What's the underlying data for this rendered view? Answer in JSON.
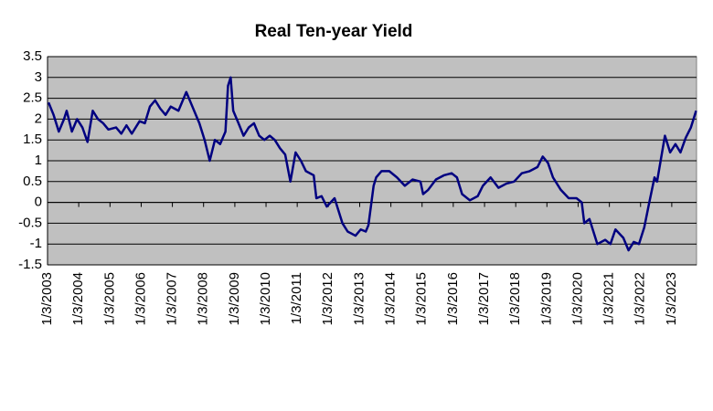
{
  "chart_data": {
    "type": "line",
    "title": "Real Ten-year Yield",
    "series": [
      {
        "name": "Real Ten-year Yield",
        "color": "#000080",
        "x": [
          "2003-01-15",
          "2003-03-15",
          "2003-05-15",
          "2003-07-15",
          "2003-08-15",
          "2003-10-15",
          "2003-12-15",
          "2004-02-15",
          "2004-04-15",
          "2004-06-15",
          "2004-08-15",
          "2004-10-15",
          "2004-12-15",
          "2005-03-15",
          "2005-05-15",
          "2005-07-15",
          "2005-09-15",
          "2005-12-15",
          "2006-02-15",
          "2006-04-15",
          "2006-06-15",
          "2006-08-15",
          "2006-10-15",
          "2006-12-15",
          "2007-03-15",
          "2007-06-15",
          "2007-08-15",
          "2007-11-15",
          "2008-01-15",
          "2008-03-15",
          "2008-05-15",
          "2008-07-15",
          "2008-09-15",
          "2008-10-15",
          "2008-11-15",
          "2008-12-15",
          "2009-02-15",
          "2009-04-15",
          "2009-06-15",
          "2009-08-15",
          "2009-10-15",
          "2009-12-15",
          "2010-02-15",
          "2010-04-15",
          "2010-06-15",
          "2010-08-15",
          "2010-10-15",
          "2010-12-15",
          "2011-02-15",
          "2011-04-15",
          "2011-07-15",
          "2011-08-15",
          "2011-10-15",
          "2011-12-15",
          "2012-03-15",
          "2012-06-15",
          "2012-08-15",
          "2012-11-15",
          "2013-01-15",
          "2013-03-15",
          "2013-04-15",
          "2013-06-15",
          "2013-07-15",
          "2013-09-15",
          "2013-12-15",
          "2014-03-15",
          "2014-06-15",
          "2014-09-15",
          "2014-12-15",
          "2015-01-15",
          "2015-03-15",
          "2015-06-15",
          "2015-09-15",
          "2015-12-15",
          "2016-02-15",
          "2016-04-15",
          "2016-07-15",
          "2016-10-15",
          "2016-12-15",
          "2017-03-15",
          "2017-06-15",
          "2017-09-15",
          "2017-12-15",
          "2018-03-15",
          "2018-06-15",
          "2018-09-15",
          "2018-11-15",
          "2019-01-15",
          "2019-03-15",
          "2019-06-15",
          "2019-09-15",
          "2019-12-15",
          "2020-02-15",
          "2020-03-15",
          "2020-05-15",
          "2020-08-15",
          "2020-11-15",
          "2021-01-15",
          "2021-03-15",
          "2021-06-15",
          "2021-08-15",
          "2021-10-15",
          "2021-12-15",
          "2022-02-15",
          "2022-04-15",
          "2022-06-15",
          "2022-07-15",
          "2022-10-15",
          "2022-12-15",
          "2023-02-15",
          "2023-04-15",
          "2023-06-15",
          "2023-08-15",
          "2023-10-15"
        ],
        "values": [
          2.4,
          2.1,
          1.7,
          2.0,
          2.2,
          1.7,
          2.0,
          1.8,
          1.45,
          2.2,
          2.0,
          1.9,
          1.75,
          1.8,
          1.65,
          1.85,
          1.65,
          1.95,
          1.9,
          2.3,
          2.45,
          2.25,
          2.1,
          2.3,
          2.2,
          2.65,
          2.35,
          1.9,
          1.5,
          1.0,
          1.5,
          1.4,
          1.7,
          2.8,
          3.0,
          2.2,
          1.9,
          1.6,
          1.8,
          1.9,
          1.6,
          1.5,
          1.6,
          1.5,
          1.3,
          1.15,
          0.5,
          1.2,
          1.0,
          0.75,
          0.65,
          0.1,
          0.15,
          -0.1,
          0.1,
          -0.5,
          -0.7,
          -0.8,
          -0.65,
          -0.7,
          -0.55,
          0.4,
          0.6,
          0.75,
          0.75,
          0.6,
          0.4,
          0.55,
          0.5,
          0.2,
          0.3,
          0.55,
          0.65,
          0.7,
          0.6,
          0.2,
          0.05,
          0.15,
          0.4,
          0.6,
          0.35,
          0.45,
          0.5,
          0.7,
          0.75,
          0.85,
          1.1,
          0.95,
          0.6,
          0.3,
          0.1,
          0.1,
          0.0,
          -0.5,
          -0.4,
          -1.0,
          -0.9,
          -1.0,
          -0.65,
          -0.85,
          -1.15,
          -0.95,
          -1.0,
          -0.6,
          0.0,
          0.6,
          0.5,
          1.6,
          1.2,
          1.4,
          1.2,
          1.55,
          1.8,
          2.2
        ]
      }
    ],
    "xlim": [
      "2003-01-03",
      "2023-10-20"
    ],
    "xticks": [
      {
        "value": "2003-01-03",
        "label": "1/3/2003"
      },
      {
        "value": "2004-01-03",
        "label": "1/3/2004"
      },
      {
        "value": "2005-01-03",
        "label": "1/3/2005"
      },
      {
        "value": "2006-01-03",
        "label": "1/3/2006"
      },
      {
        "value": "2007-01-03",
        "label": "1/3/2007"
      },
      {
        "value": "2008-01-03",
        "label": "1/3/2008"
      },
      {
        "value": "2009-01-03",
        "label": "1/3/2009"
      },
      {
        "value": "2010-01-03",
        "label": "1/3/2010"
      },
      {
        "value": "2011-01-03",
        "label": "1/3/2011"
      },
      {
        "value": "2012-01-03",
        "label": "1/3/2012"
      },
      {
        "value": "2013-01-03",
        "label": "1/3/2013"
      },
      {
        "value": "2014-01-03",
        "label": "1/3/2014"
      },
      {
        "value": "2015-01-03",
        "label": "1/3/2015"
      },
      {
        "value": "2016-01-03",
        "label": "1/3/2016"
      },
      {
        "value": "2017-01-03",
        "label": "1/3/2017"
      },
      {
        "value": "2018-01-03",
        "label": "1/3/2018"
      },
      {
        "value": "2019-01-03",
        "label": "1/3/2019"
      },
      {
        "value": "2020-01-03",
        "label": "1/3/2020"
      },
      {
        "value": "2021-01-03",
        "label": "1/3/2021"
      },
      {
        "value": "2022-01-03",
        "label": "1/3/2022"
      },
      {
        "value": "2023-01-03",
        "label": "1/3/2023"
      }
    ],
    "ylim": [
      -1.5,
      3.5
    ],
    "yticks": [
      -1.5,
      -1,
      -0.5,
      0,
      0.5,
      1,
      1.5,
      2,
      2.5,
      3,
      3.5
    ],
    "grid": true
  }
}
